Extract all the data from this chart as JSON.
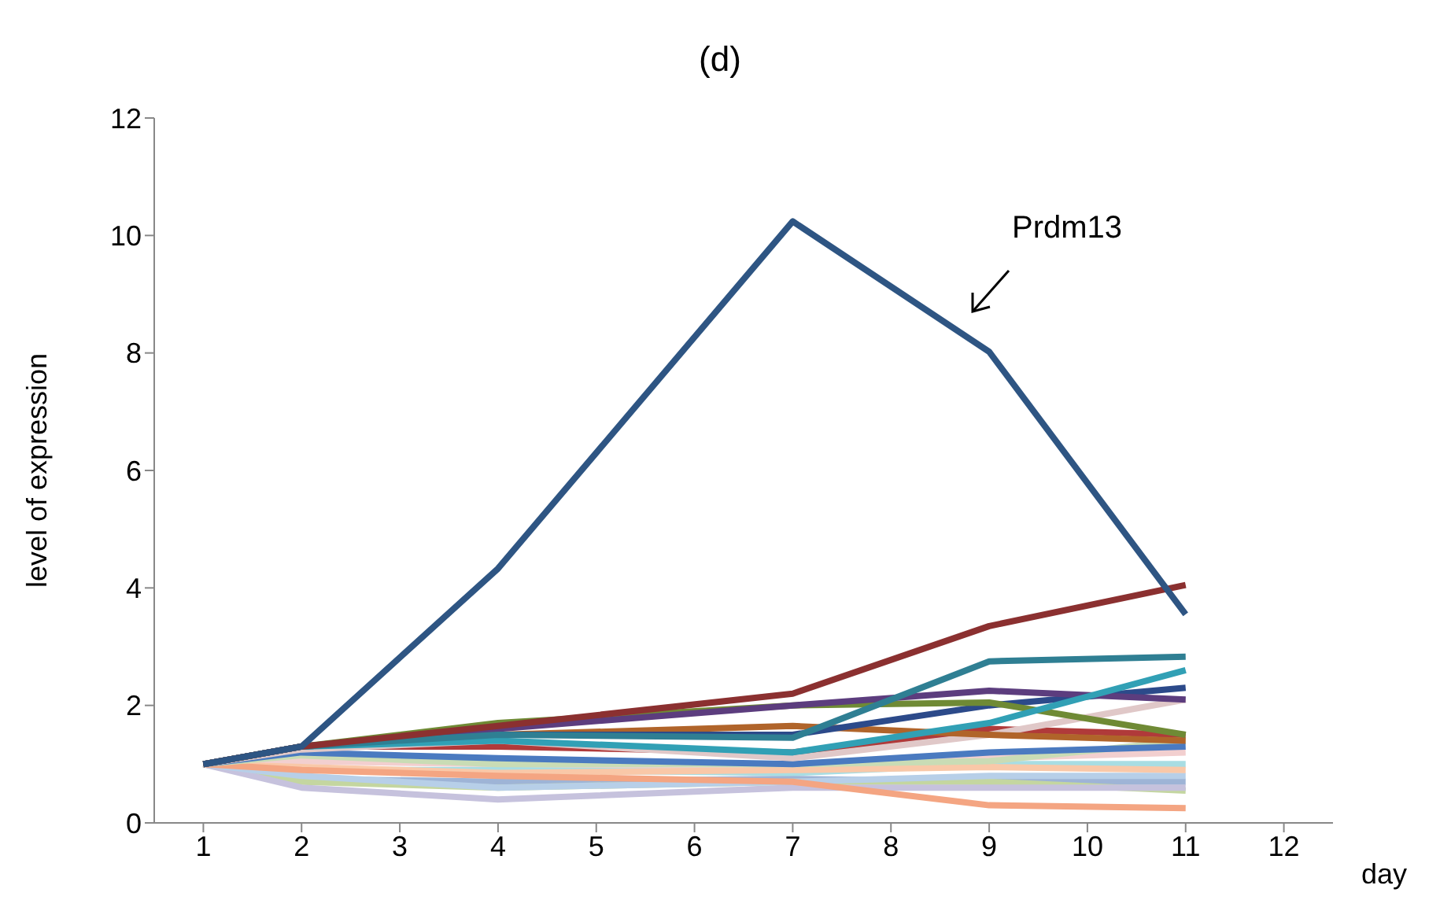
{
  "chart_data": {
    "type": "line",
    "title": "(d)",
    "xlabel": "day",
    "ylabel": "level of expression",
    "x": [
      1,
      2,
      4,
      7,
      9,
      11
    ],
    "xlim": [
      0.5,
      12.5
    ],
    "xticks": [
      1,
      2,
      3,
      4,
      5,
      6,
      7,
      8,
      9,
      10,
      11,
      12
    ],
    "ylim": [
      0,
      12
    ],
    "yticks": [
      0,
      2,
      4,
      6,
      8,
      10,
      12
    ],
    "grid": false,
    "legend": false,
    "marker": "none",
    "annotations": [
      "Prdm13"
    ],
    "series": [
      {
        "color": "#f2cfcf",
        "values": [
          1,
          1.05,
          1.0,
          0.95,
          1.1,
          1.2
        ]
      },
      {
        "color": "#9eb4d6",
        "values": [
          1,
          0.75,
          0.7,
          0.75,
          0.7,
          0.7
        ]
      },
      {
        "color": "#a8dde3",
        "values": [
          1,
          0.9,
          0.9,
          0.85,
          1.0,
          1.0
        ]
      },
      {
        "color": "#c4d6a0",
        "values": [
          1,
          0.7,
          0.6,
          0.7,
          0.7,
          0.55
        ]
      },
      {
        "color": "#c6c2dd",
        "values": [
          1,
          0.6,
          0.4,
          0.6,
          0.6,
          0.6
        ]
      },
      {
        "color": "#b7cfe8",
        "values": [
          1,
          0.8,
          0.6,
          0.7,
          0.8,
          0.8
        ]
      },
      {
        "color": "#f9c8a8",
        "values": [
          1,
          0.95,
          0.85,
          0.9,
          0.95,
          0.9
        ]
      },
      {
        "color": "#f4a582",
        "values": [
          1,
          0.9,
          0.8,
          0.7,
          0.3,
          0.25
        ]
      },
      {
        "color": "#c9dcb5",
        "values": [
          1,
          1.15,
          1.0,
          1.0,
          1.05,
          1.4
        ]
      },
      {
        "color": "#4a7ac0",
        "values": [
          1,
          1.2,
          1.1,
          1.0,
          1.2,
          1.3
        ]
      },
      {
        "color": "#b03a3a",
        "values": [
          1,
          1.3,
          1.3,
          1.2,
          1.6,
          1.5
        ]
      },
      {
        "color": "#e0c8c8",
        "values": [
          1,
          1.25,
          1.4,
          1.1,
          1.5,
          2.1
        ]
      },
      {
        "color": "#b0642a",
        "values": [
          1,
          1.3,
          1.5,
          1.65,
          1.5,
          1.4
        ]
      },
      {
        "color": "#2c4a8a",
        "values": [
          1,
          1.3,
          1.5,
          1.5,
          2.0,
          2.3
        ]
      },
      {
        "color": "#6f8a35",
        "values": [
          1,
          1.3,
          1.7,
          2.0,
          2.05,
          1.5
        ]
      },
      {
        "color": "#5c3d7e",
        "values": [
          1,
          1.3,
          1.6,
          2.0,
          2.25,
          2.1
        ]
      },
      {
        "color": "#31a0b5",
        "values": [
          1,
          1.3,
          1.4,
          1.2,
          1.7,
          2.6
        ]
      },
      {
        "color": "#2f7f93",
        "values": [
          1,
          1.3,
          1.5,
          1.45,
          2.75,
          2.83
        ]
      },
      {
        "color": "#8b3030",
        "values": [
          1,
          1.3,
          1.65,
          2.2,
          3.35,
          4.05
        ]
      },
      {
        "color": "#2e5583",
        "values": [
          1,
          1.3,
          4.33,
          10.24,
          8.02,
          3.55
        ]
      }
    ]
  }
}
